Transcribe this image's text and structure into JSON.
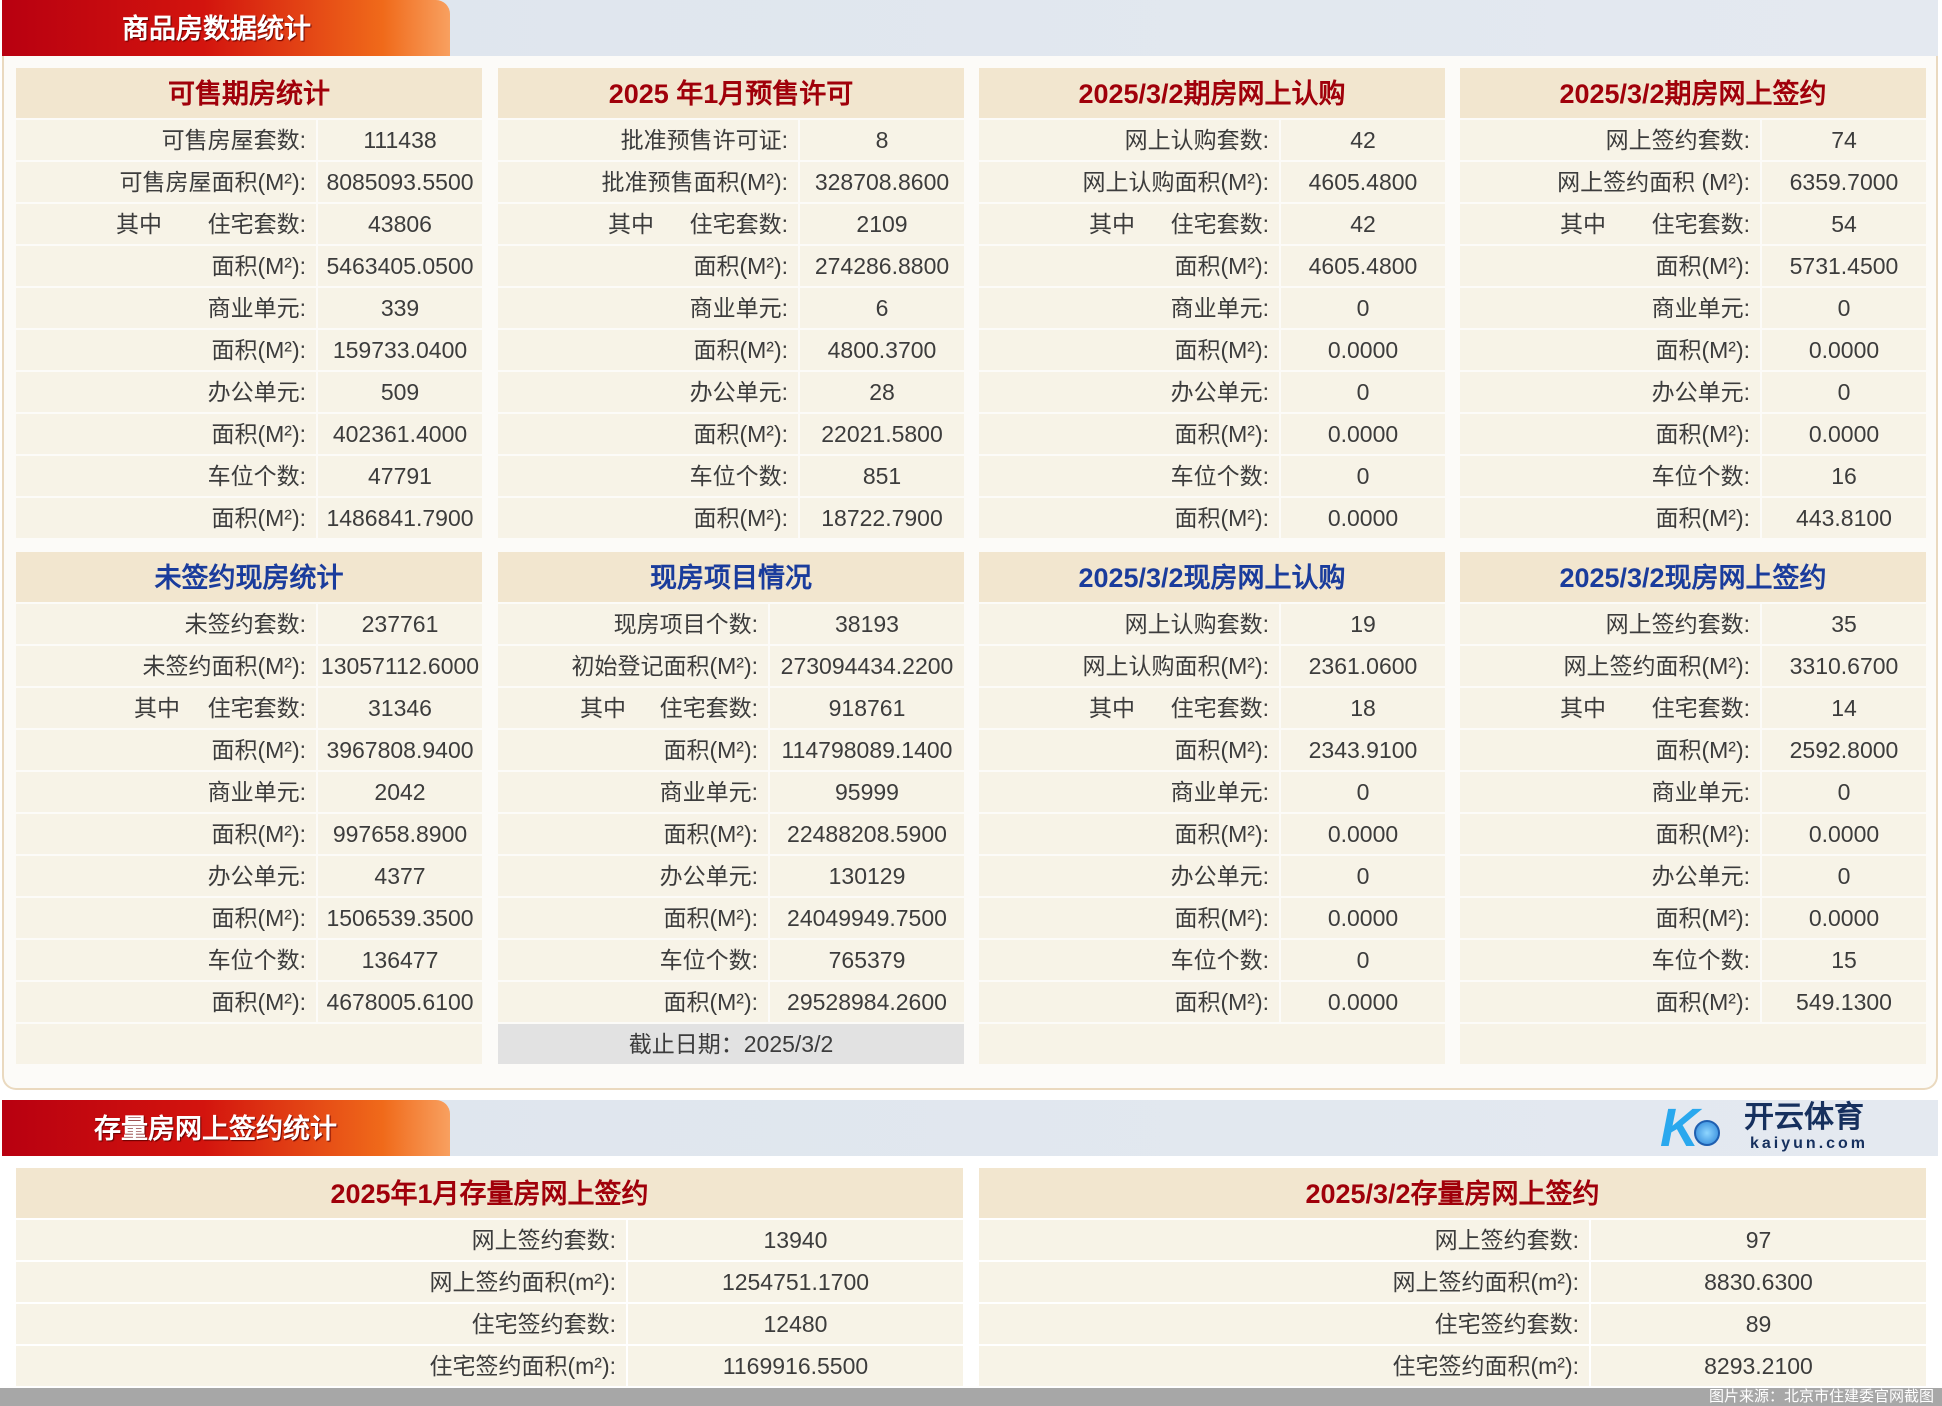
{
  "section1": {
    "title": "商品房数据统计"
  },
  "section2": {
    "title": "存量房网上签约统计"
  },
  "colors": {
    "title_red": "#a0000a",
    "title_blue": "#1a3c9c",
    "header_bg": "#f2e6cf",
    "row_bg": "#f7f3e7",
    "banner_red": "#d3140e"
  },
  "tables": [
    {
      "title": "可售期房统计",
      "color": "red",
      "rows": [
        {
          "label": "可售房屋套数:",
          "value": "111438"
        },
        {
          "label": "可售房屋面积(M²):",
          "value": "8085093.5500"
        },
        {
          "prefix": "其中",
          "label": "住宅套数:",
          "value": "43806"
        },
        {
          "label": "面积(M²):",
          "value": "5463405.0500"
        },
        {
          "label": "商业单元:",
          "value": "339"
        },
        {
          "label": "面积(M²):",
          "value": "159733.0400"
        },
        {
          "label": "办公单元:",
          "value": "509"
        },
        {
          "label": "面积(M²):",
          "value": "402361.4000"
        },
        {
          "label": "车位个数:",
          "value": "47791"
        },
        {
          "label": "面积(M²):",
          "value": "1486841.7900"
        }
      ]
    },
    {
      "title": "2025 年1月预售许可",
      "color": "red",
      "rows": [
        {
          "label": "批准预售许可证:",
          "value": "8"
        },
        {
          "label": "批准预售面积(M²):",
          "value": "328708.8600"
        },
        {
          "prefix": "其中",
          "label": "住宅套数:",
          "value": "2109"
        },
        {
          "label": "面积(M²):",
          "value": "274286.8800"
        },
        {
          "label": "商业单元:",
          "value": "6"
        },
        {
          "label": "面积(M²):",
          "value": "4800.3700"
        },
        {
          "label": "办公单元:",
          "value": "28"
        },
        {
          "label": "面积(M²):",
          "value": "22021.5800"
        },
        {
          "label": "车位个数:",
          "value": "851"
        },
        {
          "label": "面积(M²):",
          "value": "18722.7900"
        }
      ]
    },
    {
      "title": "2025/3/2期房网上认购",
      "color": "red",
      "rows": [
        {
          "label": "网上认购套数:",
          "value": "42"
        },
        {
          "label": "网上认购面积(M²):",
          "value": "4605.4800"
        },
        {
          "prefix": "其中",
          "label": "住宅套数:",
          "value": "42"
        },
        {
          "label": "面积(M²):",
          "value": "4605.4800"
        },
        {
          "label": "商业单元:",
          "value": "0"
        },
        {
          "label": "面积(M²):",
          "value": "0.0000"
        },
        {
          "label": "办公单元:",
          "value": "0"
        },
        {
          "label": "面积(M²):",
          "value": "0.0000"
        },
        {
          "label": "车位个数:",
          "value": "0"
        },
        {
          "label": "面积(M²):",
          "value": "0.0000"
        }
      ]
    },
    {
      "title": "2025/3/2期房网上签约",
      "color": "red",
      "rows": [
        {
          "label": "网上签约套数:",
          "value": "74"
        },
        {
          "label": "网上签约面积 (M²):",
          "value": "6359.7000"
        },
        {
          "prefix": "其中",
          "label": "住宅套数:",
          "value": "54"
        },
        {
          "label": "面积(M²):",
          "value": "5731.4500"
        },
        {
          "label": "商业单元:",
          "value": "0"
        },
        {
          "label": "面积(M²):",
          "value": "0.0000"
        },
        {
          "label": "办公单元:",
          "value": "0"
        },
        {
          "label": "面积(M²):",
          "value": "0.0000"
        },
        {
          "label": "车位个数:",
          "value": "16"
        },
        {
          "label": "面积(M²):",
          "value": "443.8100"
        }
      ]
    },
    {
      "title": "未签约现房统计",
      "color": "blue",
      "rows": [
        {
          "label": "未签约套数:",
          "value": "237761"
        },
        {
          "label": "未签约面积(M²):",
          "value": "13057112.6000"
        },
        {
          "prefix": "其中",
          "label": "住宅套数:",
          "value": "31346"
        },
        {
          "label": "面积(M²):",
          "value": "3967808.9400"
        },
        {
          "label": "商业单元:",
          "value": "2042"
        },
        {
          "label": "面积(M²):",
          "value": "997658.8900"
        },
        {
          "label": "办公单元:",
          "value": "4377"
        },
        {
          "label": "面积(M²):",
          "value": "1506539.3500"
        },
        {
          "label": "车位个数:",
          "value": "136477"
        },
        {
          "label": "面积(M²):",
          "value": "4678005.6100"
        }
      ],
      "footer": ""
    },
    {
      "title": "现房项目情况",
      "color": "blue",
      "rows": [
        {
          "label": "现房项目个数:",
          "value": "38193"
        },
        {
          "label": "初始登记面积(M²):",
          "value": "273094434.2200"
        },
        {
          "prefix": "其中",
          "label": "住宅套数:",
          "value": "918761"
        },
        {
          "label": "面积(M²):",
          "value": "114798089.1400"
        },
        {
          "label": "商业单元:",
          "value": "95999"
        },
        {
          "label": "面积(M²):",
          "value": "22488208.5900"
        },
        {
          "label": "办公单元:",
          "value": "130129"
        },
        {
          "label": "面积(M²):",
          "value": "24049949.7500"
        },
        {
          "label": "车位个数:",
          "value": "765379"
        },
        {
          "label": "面积(M²):",
          "value": "29528984.2600"
        }
      ],
      "footer": "截止日期：2025/3/2"
    },
    {
      "title": "2025/3/2现房网上认购",
      "color": "blue",
      "rows": [
        {
          "label": "网上认购套数:",
          "value": "19"
        },
        {
          "label": "网上认购面积(M²):",
          "value": "2361.0600"
        },
        {
          "prefix": "其中",
          "label": "住宅套数:",
          "value": "18"
        },
        {
          "label": "面积(M²):",
          "value": "2343.9100"
        },
        {
          "label": "商业单元:",
          "value": "0"
        },
        {
          "label": "面积(M²):",
          "value": "0.0000"
        },
        {
          "label": "办公单元:",
          "value": "0"
        },
        {
          "label": "面积(M²):",
          "value": "0.0000"
        },
        {
          "label": "车位个数:",
          "value": "0"
        },
        {
          "label": "面积(M²):",
          "value": "0.0000"
        }
      ],
      "footer": ""
    },
    {
      "title": "2025/3/2现房网上签约",
      "color": "blue",
      "rows": [
        {
          "label": "网上签约套数:",
          "value": "35"
        },
        {
          "label": "网上签约面积(M²):",
          "value": "3310.6700"
        },
        {
          "prefix": "其中",
          "label": "住宅套数:",
          "value": "14"
        },
        {
          "label": "面积(M²):",
          "value": "2592.8000"
        },
        {
          "label": "商业单元:",
          "value": "0"
        },
        {
          "label": "面积(M²):",
          "value": "0.0000"
        },
        {
          "label": "办公单元:",
          "value": "0"
        },
        {
          "label": "面积(M²):",
          "value": "0.0000"
        },
        {
          "label": "车位个数:",
          "value": "15"
        },
        {
          "label": "面积(M²):",
          "value": "549.1300"
        }
      ],
      "footer": ""
    },
    {
      "title": "2025年1月存量房网上签约",
      "color": "red",
      "rows": [
        {
          "label": "网上签约套数:",
          "value": "13940"
        },
        {
          "label": "网上签约面积(m²):",
          "value": "1254751.1700"
        },
        {
          "label": "住宅签约套数:",
          "value": "12480"
        },
        {
          "label": "住宅签约面积(m²):",
          "value": "1169916.5500"
        }
      ]
    },
    {
      "title": "2025/3/2存量房网上签约",
      "color": "red",
      "rows": [
        {
          "label": "网上签约套数:",
          "value": "97"
        },
        {
          "label": "网上签约面积(m²):",
          "value": "8830.6300"
        },
        {
          "label": "住宅签约套数:",
          "value": "89"
        },
        {
          "label": "住宅签约面积(m²):",
          "value": "8293.2100"
        }
      ]
    }
  ],
  "watermark": {
    "brand_cn": "开云体育",
    "brand_en": "kaiyun.com",
    "caption": "图片来源：北京市住建委官网截图"
  }
}
